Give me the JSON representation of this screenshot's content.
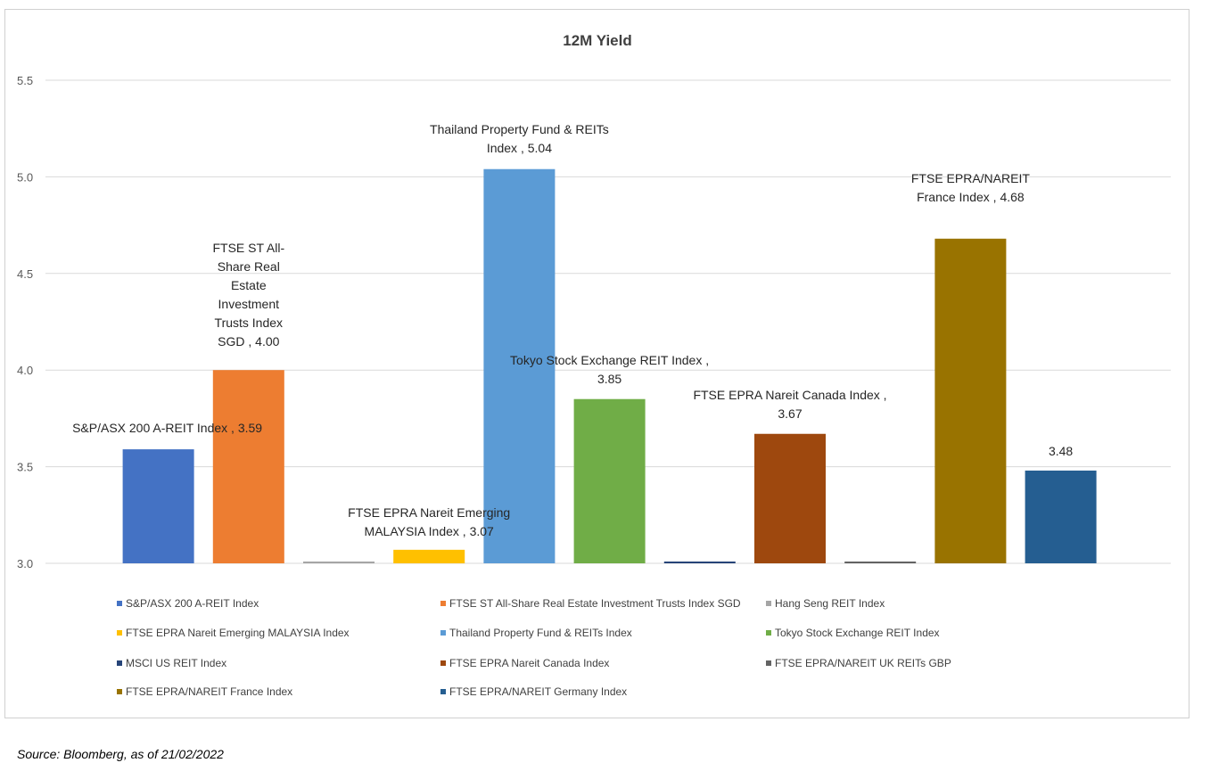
{
  "source": "Source: Bloomberg, as of 21/02/2022",
  "chart_data": {
    "type": "bar",
    "title": "12M Yield",
    "ylim": [
      3.0,
      5.5
    ],
    "yticks": [
      "3.0",
      "3.5",
      "4.0",
      "4.5",
      "5.0",
      "5.5"
    ],
    "grid": true,
    "legend_position": "bottom",
    "series": [
      {
        "name": "S&P/ASX 200 A-REIT Index",
        "value": 3.59,
        "color": "#4472C4",
        "label": [
          "S&P/ASX 200 A-REIT Index , 3.59"
        ]
      },
      {
        "name": "FTSE ST All-Share Real Estate Investment Trusts Index SGD",
        "value": 4.0,
        "color": "#ED7D31",
        "label": [
          "FTSE ST All-",
          "Share Real",
          "Estate",
          "Investment",
          "Trusts Index",
          "SGD , 4.00"
        ]
      },
      {
        "name": "Hang Seng REIT Index",
        "value": 3.0,
        "color": "#A5A5A5",
        "label": []
      },
      {
        "name": "FTSE EPRA Nareit Emerging MALAYSIA Index",
        "value": 3.07,
        "color": "#FFC000",
        "label": [
          "FTSE EPRA Nareit Emerging",
          "MALAYSIA Index , 3.07"
        ]
      },
      {
        "name": "Thailand Property Fund & REITs Index",
        "value": 5.04,
        "color": "#5B9BD5",
        "label": [
          "Thailand Property Fund & REITs",
          "Index , 5.04"
        ]
      },
      {
        "name": "Tokyo Stock Exchange REIT Index",
        "value": 3.85,
        "color": "#70AD47",
        "label": [
          "Tokyo Stock Exchange REIT Index ,",
          "3.85"
        ]
      },
      {
        "name": "MSCI US REIT Index",
        "value": 3.0,
        "color": "#264478",
        "label": []
      },
      {
        "name": "FTSE EPRA Nareit Canada Index",
        "value": 3.67,
        "color": "#9E480E",
        "label": [
          "FTSE EPRA Nareit Canada Index ,",
          "3.67"
        ]
      },
      {
        "name": "FTSE EPRA/NAREIT UK REITs GBP",
        "value": 3.0,
        "color": "#636363",
        "label": []
      },
      {
        "name": "FTSE EPRA/NAREIT France Index",
        "value": 4.68,
        "color": "#997300",
        "label": [
          "FTSE EPRA/NAREIT",
          "France Index , 4.68"
        ]
      },
      {
        "name": "FTSE EPRA/NAREIT Germany Index",
        "value": 3.48,
        "color": "#255E91",
        "label": [
          "3.48"
        ]
      }
    ]
  }
}
